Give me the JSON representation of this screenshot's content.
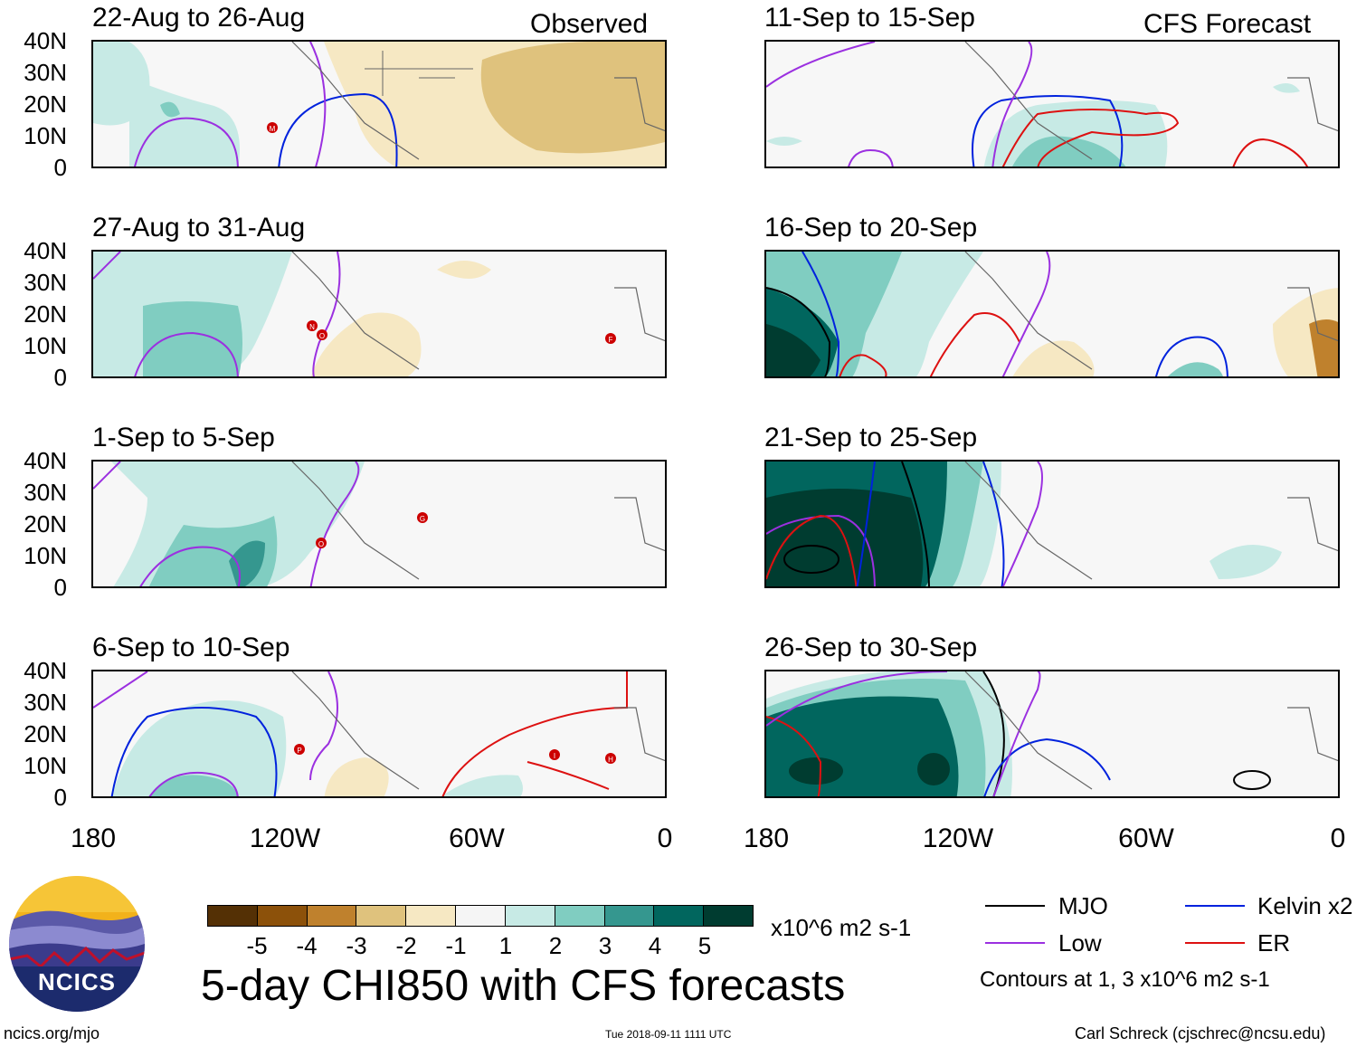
{
  "panels": {
    "left": [
      {
        "title": "22-Aug to 26-Aug",
        "label": "Observed"
      },
      {
        "title": "27-Aug to 31-Aug"
      },
      {
        "title": "1-Sep to 5-Sep"
      },
      {
        "title": "6-Sep to 10-Sep"
      }
    ],
    "right": [
      {
        "title": "11-Sep to 15-Sep",
        "label": "CFS Forecast"
      },
      {
        "title": "16-Sep to 20-Sep"
      },
      {
        "title": "21-Sep to 25-Sep"
      },
      {
        "title": "26-Sep to 30-Sep"
      }
    ]
  },
  "axes": {
    "y_ticks": [
      "40N",
      "30N",
      "20N",
      "10N",
      "0"
    ],
    "x_ticks": [
      "180",
      "120W",
      "60W",
      "0"
    ]
  },
  "storm_markers": {
    "p1": [
      "M"
    ],
    "p2": [
      "N",
      "O",
      "F"
    ],
    "p3": [
      "G",
      "O"
    ],
    "p4": [
      "P",
      "I",
      "H"
    ]
  },
  "colorbar": {
    "colors": [
      "#543005",
      "#8c510a",
      "#bf812d",
      "#dfc27d",
      "#f6e8c3",
      "#f5f5f5",
      "#c7eae5",
      "#80cdc1",
      "#35978f",
      "#01665e",
      "#003c30"
    ],
    "ticks": [
      "-5",
      "-4",
      "-3",
      "-2",
      "-1",
      "1",
      "2",
      "3",
      "4",
      "5"
    ],
    "units": "x10^6 m2 s-1"
  },
  "title": "5-day CHI850 with CFS forecasts",
  "legend": {
    "items": [
      {
        "label": "MJO",
        "color": "#000000"
      },
      {
        "label": "Kelvin x2",
        "color": "#0022dd"
      },
      {
        "label": "Low",
        "color": "#9b30e0"
      },
      {
        "label": "ER",
        "color": "#dd1111"
      }
    ],
    "note": "Contours at 1, 3 x10^6 m2 s-1"
  },
  "footer": {
    "website": "ncics.org/mjo",
    "timestamp": "Tue 2018-09-11 1111 UTC",
    "author": "Carl Schreck (cjschrec@ncsu.edu)"
  },
  "logo": {
    "text": "NCICS"
  }
}
